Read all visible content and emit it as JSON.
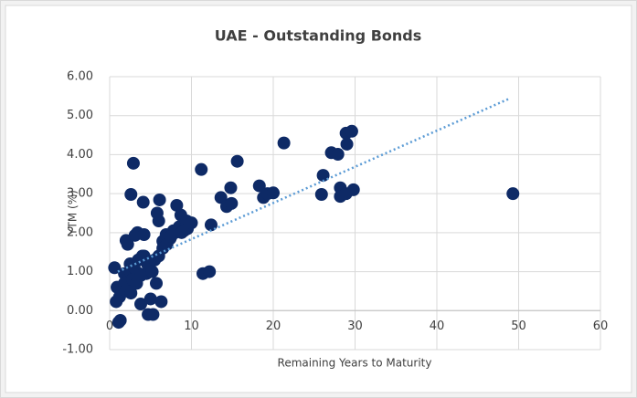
{
  "chart_data": {
    "type": "scatter",
    "title": "UAE - Outstanding Bonds",
    "x_label": "Remaining Years to Maturity",
    "y_label": "YTM (%)",
    "xlim": [
      0,
      60
    ],
    "xticks": [
      0,
      10,
      20,
      30,
      40,
      50,
      60
    ],
    "ylim": [
      -1,
      6
    ],
    "yticks": [
      {
        "value": -1,
        "label": "-1.00"
      },
      {
        "value": 0,
        "label": "0.00"
      },
      {
        "value": 1,
        "label": "1.00"
      },
      {
        "value": 2,
        "label": "2.00"
      },
      {
        "value": 3,
        "label": "3.00"
      },
      {
        "value": 4,
        "label": "4.00"
      },
      {
        "value": 5,
        "label": "5.00"
      },
      {
        "value": 6,
        "label": "6.00"
      }
    ],
    "grid": true,
    "color": "#0e2a66",
    "x": [
      0.6,
      0.8,
      0.9,
      1.1,
      1.3,
      1.8,
      2.0,
      2.2,
      2.6,
      2.6,
      2.9,
      3.1,
      3.4,
      3.6,
      3.8,
      4.0,
      4.1,
      4.2,
      4.5,
      4.7,
      5.0,
      5.3,
      5.7,
      5.8,
      6.0,
      6.1,
      6.3,
      6.5,
      6.9,
      7.4,
      7.8,
      8.2,
      8.5,
      8.7,
      9.1,
      9.3,
      9.4,
      11.2,
      11.4,
      12.2,
      12.4,
      13.6,
      14.3,
      14.8,
      14.9,
      15.6,
      18.3,
      18.8,
      19.3,
      20.0,
      21.3,
      25.9,
      26.1,
      27.1,
      27.9,
      28.2,
      28.2,
      28.9,
      28.9,
      29.0,
      29.6,
      29.8,
      49.3,
      1.5,
      1.8,
      2.2,
      2.5,
      2.8,
      3.0,
      3.3,
      3.5,
      3.8,
      4.2,
      4.6,
      5.2,
      5.5,
      6.0,
      6.5,
      7.0,
      7.5,
      8.0,
      8.8,
      9.5,
      10.0,
      1.2,
      2.0,
      2.6
    ],
    "values": [
      1.1,
      0.23,
      0.6,
      -0.3,
      -0.25,
      0.95,
      1.8,
      1.7,
      0.98,
      2.98,
      3.78,
      1.93,
      2.0,
      0.95,
      0.17,
      1.4,
      2.78,
      1.95,
      0.95,
      -0.1,
      0.3,
      -0.1,
      0.7,
      2.5,
      2.3,
      2.84,
      0.23,
      1.78,
      1.95,
      1.85,
      2.05,
      2.7,
      2.15,
      2.45,
      2.05,
      2.25,
      2.3,
      3.62,
      0.95,
      1.0,
      2.2,
      2.9,
      2.67,
      3.15,
      2.75,
      3.83,
      3.2,
      2.9,
      3.0,
      3.02,
      4.3,
      2.98,
      3.47,
      4.05,
      4.01,
      3.15,
      2.93,
      3.0,
      4.55,
      4.27,
      4.6,
      3.1,
      3.0,
      0.5,
      0.7,
      0.6,
      1.2,
      0.8,
      1.1,
      0.7,
      1.3,
      0.9,
      1.4,
      1.2,
      1.0,
      1.3,
      1.4,
      1.6,
      1.7,
      1.9,
      2.0,
      2.0,
      2.1,
      2.25,
      0.35,
      0.5,
      0.45
    ],
    "trendline": {
      "color": "#5b9bd5",
      "x": [
        1,
        49
      ],
      "values": [
        1.0,
        5.45
      ]
    }
  }
}
